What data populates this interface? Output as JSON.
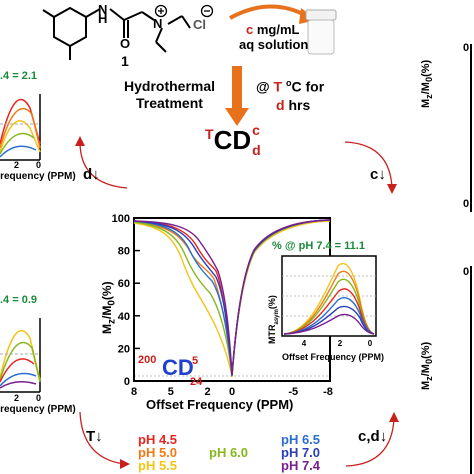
{
  "header": {
    "chloride_label": "Cl",
    "compound_number": "1",
    "conc_line1_c": "c",
    "conc_line1_rest": " mg/mL",
    "conc_line2": "aq solution"
  },
  "process": {
    "line1": "Hydrothermal",
    "line2": "Treatment",
    "at_prefix": "@ ",
    "T": "T",
    "deg": "o",
    "C_for": "C for",
    "d": "d",
    "hrs": " hrs"
  },
  "product": {
    "sup_left": "T",
    "main": "CD",
    "sub": "d",
    "sup_right": "c"
  },
  "cycle": {
    "d_down": "d",
    "c_down": "c",
    "T_down": "T",
    "cd_down": "c,d"
  },
  "edge_labels": {
    "top_left_ph": ".4 = 2.1",
    "top_left_x": "Frequency (PPM)",
    "top_left_tick": "2",
    "top_left_tick0": "0",
    "bottom_left_ph": ".4 = 0.9",
    "bottom_left_x": "Frequency (PPM)",
    "bottom_left_tick": "2",
    "bottom_left_tick0": "0",
    "right_ylabel": "M",
    "right_tick0": "0",
    "right_tick_top": "0"
  },
  "main_plot": {
    "ylabel": "M",
    "xlabel": "Offset Frequency (PPM)",
    "y_ticks": [
      "100",
      "80",
      "60",
      "40",
      "20",
      "0"
    ],
    "x_ticks": [
      "8",
      "5",
      "2",
      "0",
      "-5",
      "-8"
    ],
    "sample_sup1": "200",
    "sample_main": "CD",
    "sample_sup2": "5",
    "sample_sub": "24",
    "inset": {
      "title": "% @ pH 7.4 = 11.1",
      "ylabel": "MTR",
      "xlabel": "Offset Frequency (PPM)",
      "x_ticks": [
        "4",
        "2",
        "0"
      ]
    }
  },
  "legend": [
    {
      "label": "pH 4.5",
      "color": "#e8251f"
    },
    {
      "label": "pH 5.0",
      "color": "#f07a16"
    },
    {
      "label": "pH 5.5",
      "color": "#f2c318"
    },
    {
      "label": "pH 6.0",
      "color": "#86b81d"
    },
    {
      "label": "pH 6.5",
      "color": "#2a6fce"
    },
    {
      "label": "pH 7.0",
      "color": "#2a3fb8"
    },
    {
      "label": "pH 7.4",
      "color": "#7a1f8f"
    }
  ],
  "colors": {
    "accent_red": "#c8201c",
    "arrow_orange": "#e8721c",
    "inset_green": "#1a8a3a",
    "blue_cd": "#1f3fd0"
  }
}
